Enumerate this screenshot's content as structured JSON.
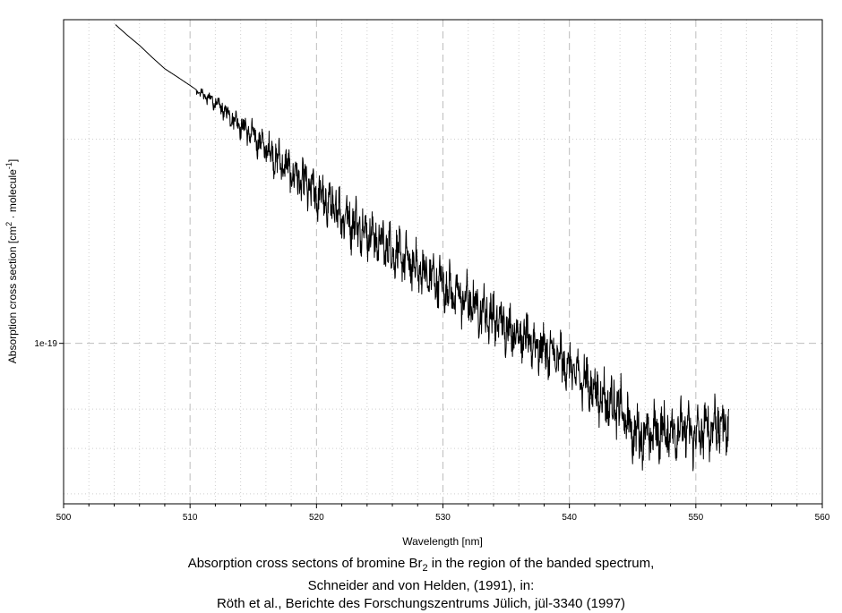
{
  "chart_data": {
    "type": "line",
    "xlabel": "Wavelength [nm]",
    "ylabel_prefix": "Absorption cross section [cm",
    "ylabel_sup1": "2",
    "ylabel_mid": " · molecule",
    "ylabel_sup2": "-1",
    "ylabel_suffix": "]",
    "xlim": [
      500,
      560
    ],
    "ylim": [
      5.8e-20,
      3e-19
    ],
    "yscale": "log",
    "x_ticks": [
      500,
      510,
      520,
      530,
      540,
      550,
      560
    ],
    "x_tick_labels": [
      "500",
      "510",
      "520",
      "530",
      "540",
      "550",
      "560"
    ],
    "y_tick_labels": [
      {
        "value": 1e-19,
        "label": "1e-19"
      }
    ],
    "grid": true,
    "legend": "none",
    "line_color": "#000000",
    "series": [
      {
        "x": [
          504.1,
          505,
          506,
          507,
          508,
          509,
          510,
          511,
          512,
          513,
          514,
          515,
          516,
          517,
          518,
          519,
          520,
          521,
          522,
          523,
          524,
          525,
          526,
          527,
          528,
          529,
          530,
          531,
          532,
          533,
          534,
          535,
          536,
          537,
          538,
          539,
          540,
          541,
          542,
          543,
          544,
          545,
          546,
          547,
          548,
          549,
          550,
          551,
          552,
          552.6
        ],
        "y": [
          2.95e-19,
          2.85e-19,
          2.75e-19,
          2.64e-19,
          2.54e-19,
          2.47e-19,
          2.4e-19,
          2.33e-19,
          2.26e-19,
          2.18e-19,
          2.1e-19,
          2.02e-19,
          1.94e-19,
          1.86e-19,
          1.79e-19,
          1.72e-19,
          1.66e-19,
          1.6e-19,
          1.55e-19,
          1.5e-19,
          1.46e-19,
          1.41e-19,
          1.37e-19,
          1.33e-19,
          1.29e-19,
          1.25e-19,
          1.22e-19,
          1.18e-19,
          1.15e-19,
          1.12e-19,
          1.09e-19,
          1.06e-19,
          1.03e-19,
          1e-19,
          9.8e-20,
          9.5e-20,
          9.2e-20,
          8.9e-20,
          8.5e-20,
          8.2e-20,
          8e-20,
          7.4e-20,
          7.3e-20,
          7.4e-20,
          7.4e-20,
          7.5e-20,
          7.3e-20,
          7.5e-20,
          7.6e-20,
          7.5e-20
        ]
      }
    ]
  },
  "caption": {
    "line1_prefix": "Absorption cross sectons of bromine Br",
    "line1_sub": "2",
    "line1_suffix": " in the  region of the banded spectrum,",
    "line2": "Schneider and von Helden, (1991), in:",
    "line3": "Röth et al., Berichte des Forschungszentrums Jülich, jül-3340 (1997)"
  }
}
